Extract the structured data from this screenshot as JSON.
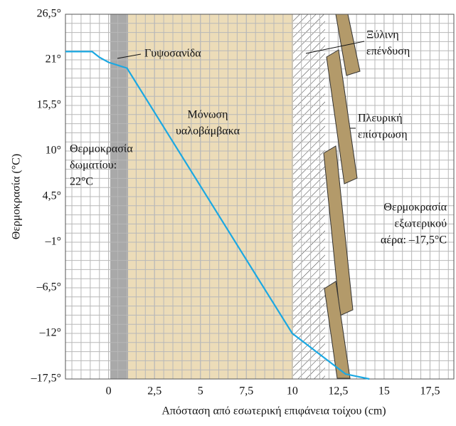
{
  "chart_data": {
    "type": "line",
    "x_label": "Απόσταση από εσωτερική επιφάνεια τοίχου (cm)",
    "y_label": "Θερμοκρασία (°C)",
    "x": [
      -2.35,
      -0.9,
      -0.5,
      0,
      1,
      10,
      12.9,
      14.2
    ],
    "series": [
      {
        "color": "#1ba8e2",
        "values": [
          22,
          22,
          21.3,
          20.7,
          20,
          -12,
          -16.9,
          -17.5
        ]
      }
    ],
    "xlim": [
      -2.35,
      18.8
    ],
    "ylim": [
      -17.5,
      26.5
    ],
    "xticks": [
      0,
      {
        "value": 2.5,
        "label": "2,5"
      },
      5,
      {
        "value": 7.5,
        "label": "7,5"
      },
      10,
      {
        "value": 12.5,
        "label": "12,5"
      },
      15,
      {
        "value": 17.5,
        "label": "17,5"
      }
    ],
    "yticks": [
      {
        "value": -17.5,
        "label": "–17,5°"
      },
      {
        "value": -12,
        "label": "–12°"
      },
      {
        "value": -6.5,
        "label": "–6,5°"
      },
      {
        "value": -1,
        "label": "–1°"
      },
      {
        "value": 4.5,
        "label": "4,5°"
      },
      {
        "value": 10,
        "label": "10°"
      },
      {
        "value": 15.5,
        "label": "15,5°"
      },
      {
        "value": 21,
        "label": "21°"
      },
      {
        "value": 26.5,
        "label": "26,5°"
      }
    ],
    "grid": true,
    "annotations": [
      {
        "lines": [
          "Γυψοσανίδα"
        ]
      },
      {
        "lines": [
          "Μόνωση",
          "υαλοβάμβακα"
        ]
      },
      {
        "lines": [
          "Θερμοκρασία",
          "δωματίου:",
          "22°C"
        ]
      },
      {
        "lines": [
          "Ξύλινη",
          "επένδυση"
        ]
      },
      {
        "lines": [
          "Πλευρική",
          "επίστρωση"
        ]
      },
      {
        "lines": [
          "Θερμοκρασία",
          "εξωτερικού",
          "αέρα: –17,5°C"
        ]
      }
    ]
  }
}
